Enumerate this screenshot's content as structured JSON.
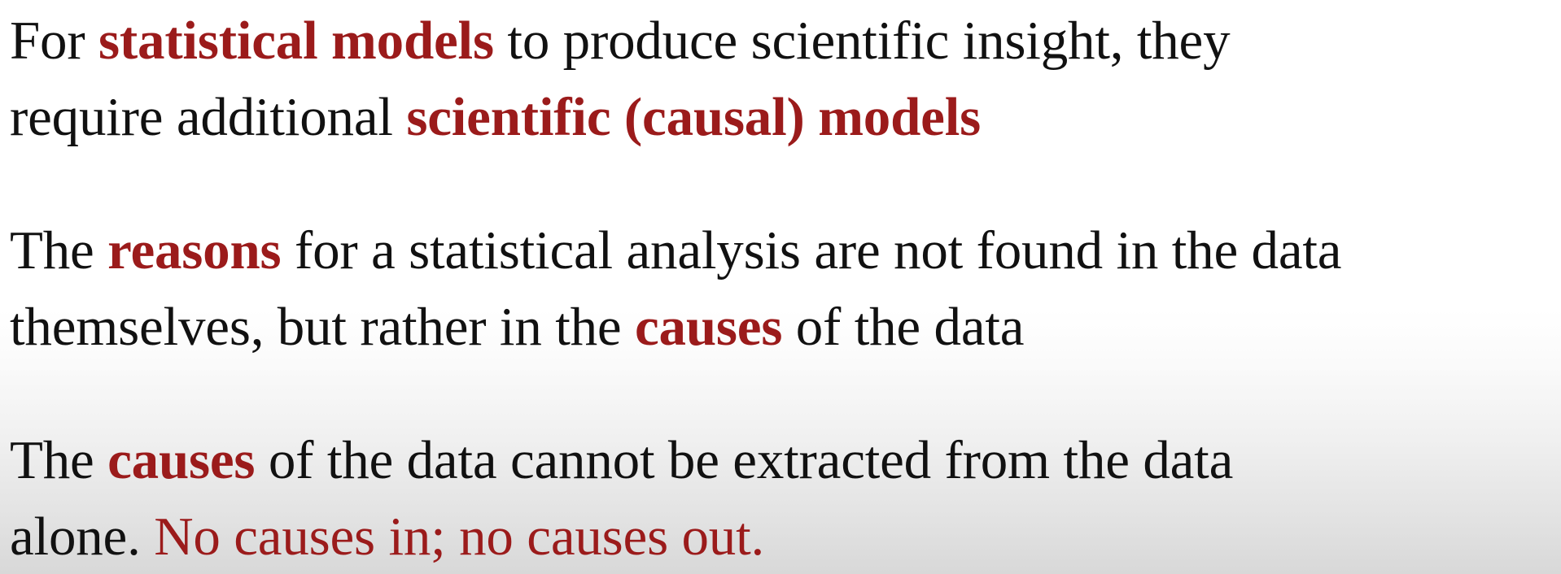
{
  "slide": {
    "p1": {
      "line1": {
        "t1": "For ",
        "em1": "statistical models",
        "t2": " to produce scientific insight, they"
      },
      "line2": {
        "t1": "require additional ",
        "em1": "scientific (causal) models"
      }
    },
    "p2": {
      "line1": {
        "t1": "The ",
        "em1": "reasons",
        "t2": " for a statistical analysis are not found in the data"
      },
      "line2": {
        "t1": "themselves, but rather in the ",
        "em1": "causes",
        "t2": " of the data"
      }
    },
    "p3": {
      "line1": {
        "t1": "The ",
        "em1": "causes",
        "t2": " of the data cannot be extracted from the data"
      },
      "line2": {
        "t1": "alone. ",
        "red1": "No causes in; no causes out."
      }
    },
    "colors": {
      "text": "#111111",
      "emphasis": "#9b1b1b"
    }
  }
}
